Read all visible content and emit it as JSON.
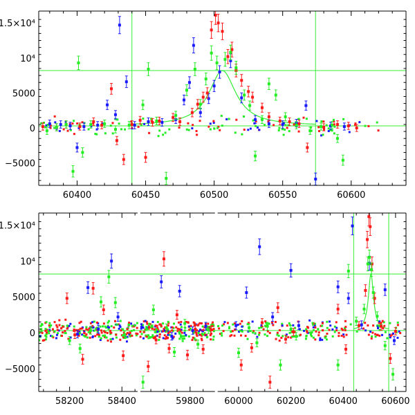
{
  "colors": {
    "red": "#ff1a1a",
    "green": "#22ee22",
    "blue": "#1a1aff",
    "guide": "#33ee33",
    "axis": "#000000"
  },
  "chart_data": [
    {
      "type": "scatter",
      "panel": "top",
      "xlim": [
        60372,
        60640
      ],
      "ylim": [
        -8200,
        16700
      ],
      "x_ticks": [
        {
          "value": 60400,
          "label": "60400"
        },
        {
          "value": 60450,
          "label": "60450"
        },
        {
          "value": 60500,
          "label": "60500"
        },
        {
          "value": 60550,
          "label": "60550"
        },
        {
          "value": 60600,
          "label": "60600"
        }
      ],
      "y_ticks": [
        {
          "value": 15000,
          "label": "1.5×10⁴"
        },
        {
          "value": 10000,
          "label": "10⁴"
        },
        {
          "value": 5000,
          "label": "5000"
        },
        {
          "value": 0,
          "label": "0"
        },
        {
          "value": -5000,
          "label": "−5000"
        }
      ],
      "hlines": [
        8200,
        300
      ],
      "vlines": [
        60440,
        60574
      ],
      "model_curve": {
        "center": 60506,
        "peak": 8200,
        "baseline": 300,
        "x_range": [
          60440,
          60574
        ]
      },
      "series": [
        {
          "color_key": "blue",
          "points": [
            [
              60380,
              600
            ],
            [
              60388,
              500
            ],
            [
              60395,
              300
            ],
            [
              60400,
              -2800
            ],
            [
              60405,
              200
            ],
            [
              60415,
              400
            ],
            [
              60422,
              3300
            ],
            [
              60428,
              1900
            ],
            [
              60431,
              14700
            ],
            [
              60436,
              6600
            ],
            [
              60442,
              400
            ],
            [
              60452,
              900
            ],
            [
              60462,
              800
            ],
            [
              60472,
              1200
            ],
            [
              60478,
              4000
            ],
            [
              60482,
              6500
            ],
            [
              60485,
              11800
            ],
            [
              60490,
              2200
            ],
            [
              60496,
              4200
            ],
            [
              60500,
              6000
            ],
            [
              60504,
              8000
            ],
            [
              60512,
              9600
            ],
            [
              60520,
              4300
            ],
            [
              60530,
              1200
            ],
            [
              60540,
              600
            ],
            [
              60550,
              500
            ],
            [
              60560,
              700
            ],
            [
              60567,
              3200
            ],
            [
              60574,
              -7300
            ],
            [
              60585,
              300
            ],
            [
              60595,
              200
            ]
          ]
        },
        {
          "color_key": "red",
          "points": [
            [
              60375,
              200
            ],
            [
              60385,
              100
            ],
            [
              60392,
              500
            ],
            [
              60402,
              200
            ],
            [
              60412,
              900
            ],
            [
              60418,
              400
            ],
            [
              60425,
              5600
            ],
            [
              60429,
              -1800
            ],
            [
              60434,
              -4500
            ],
            [
              60440,
              500
            ],
            [
              60446,
              1100
            ],
            [
              60450,
              -4200
            ],
            [
              60455,
              800
            ],
            [
              60460,
              1000
            ],
            [
              60470,
              1500
            ],
            [
              60475,
              900
            ],
            [
              60484,
              2200
            ],
            [
              60488,
              3400
            ],
            [
              60492,
              4400
            ],
            [
              60495,
              5000
            ],
            [
              60498,
              14000
            ],
            [
              60501,
              16100
            ],
            [
              60503,
              15000
            ],
            [
              60506,
              13800
            ],
            [
              60510,
              10200
            ],
            [
              60513,
              11200
            ],
            [
              60516,
              8200
            ],
            [
              60520,
              6800
            ],
            [
              60525,
              5200
            ],
            [
              60528,
              4400
            ],
            [
              60535,
              2900
            ],
            [
              60540,
              1600
            ],
            [
              60548,
              1000
            ],
            [
              60555,
              900
            ],
            [
              60562,
              600
            ],
            [
              60568,
              -2800
            ],
            [
              60580,
              100
            ],
            [
              60590,
              500
            ],
            [
              60598,
              300
            ],
            [
              60604,
              0
            ]
          ]
        },
        {
          "color_key": "green",
          "points": [
            [
              60378,
              -400
            ],
            [
              60385,
              100
            ],
            [
              60392,
              500
            ],
            [
              60397,
              -6200
            ],
            [
              60401,
              9300
            ],
            [
              60404,
              -3500
            ],
            [
              60410,
              500
            ],
            [
              60420,
              600
            ],
            [
              60428,
              -200
            ],
            [
              60438,
              400
            ],
            [
              60448,
              3300
            ],
            [
              60452,
              8400
            ],
            [
              60458,
              1000
            ],
            [
              60465,
              -7200
            ],
            [
              60472,
              1800
            ],
            [
              60480,
              5400
            ],
            [
              60486,
              8400
            ],
            [
              60490,
              3400
            ],
            [
              60494,
              7000
            ],
            [
              60498,
              10700
            ],
            [
              60502,
              9300
            ],
            [
              60508,
              9800
            ],
            [
              60512,
              10800
            ],
            [
              60516,
              8600
            ],
            [
              60522,
              4700
            ],
            [
              60526,
              3200
            ],
            [
              60530,
              -4000
            ],
            [
              60535,
              1200
            ],
            [
              60540,
              6300
            ],
            [
              60545,
              4700
            ],
            [
              60552,
              1600
            ],
            [
              60560,
              400
            ],
            [
              60570,
              -400
            ],
            [
              60578,
              200
            ],
            [
              60586,
              400
            ],
            [
              60590,
              -1500
            ],
            [
              60594,
              -4600
            ]
          ]
        }
      ]
    },
    {
      "type": "scatter",
      "panel": "bottom",
      "xlim": [
        58082,
        60640
      ],
      "ylim": [
        -8200,
        16700
      ],
      "axis_breaks": [
        {
          "x": 58460,
          "collapsed_to": 59610
        },
        {
          "x": 59895,
          "collapsed_to": 59920
        }
      ],
      "x_ticks": [
        {
          "value": 58200,
          "label": "58200"
        },
        {
          "value": 58400,
          "label": "58400"
        },
        {
          "value": 59800,
          "label": "59800"
        },
        {
          "value": 60000,
          "label": "60000"
        },
        {
          "value": 60200,
          "label": "60200"
        },
        {
          "value": 60400,
          "label": "60400"
        },
        {
          "value": 60600,
          "label": "60600"
        }
      ],
      "y_ticks": [
        {
          "value": 15000,
          "label": "1.5×10⁴"
        },
        {
          "value": 10000,
          "label": "10⁴"
        },
        {
          "value": 5000,
          "label": "5000"
        },
        {
          "value": 0,
          "label": "0"
        },
        {
          "value": -5000,
          "label": "−5000"
        }
      ],
      "hlines": [
        8200,
        300
      ],
      "vlines": [
        60440,
        60574
      ],
      "model_curve": {
        "center": 60506,
        "peak": 8200,
        "baseline": 300,
        "x_range": [
          60440,
          60574
        ]
      },
      "series": [
        {
          "color_key": "blue",
          "points": [
            [
              58230,
              -200
            ],
            [
              58270,
              6300
            ],
            [
              58310,
              500
            ],
            [
              58360,
              10000
            ],
            [
              58385,
              2200
            ],
            [
              59690,
              7100
            ],
            [
              59730,
              -500
            ],
            [
              59760,
              5800
            ],
            [
              59810,
              300
            ],
            [
              59860,
              900
            ],
            [
              59990,
              1000
            ],
            [
              60030,
              5600
            ],
            [
              60080,
              12000
            ],
            [
              60130,
              2200
            ],
            [
              60200,
              8700
            ],
            [
              60230,
              1000
            ],
            [
              60380,
              6400
            ],
            [
              60420,
              4800
            ],
            [
              60435,
              14900
            ],
            [
              60470,
              1100
            ],
            [
              60500,
              9700
            ],
            [
              60560,
              6000
            ],
            [
              60595,
              -1100
            ]
          ]
        },
        {
          "color_key": "red",
          "points": [
            [
              58190,
              4800
            ],
            [
              58220,
              -300
            ],
            [
              58250,
              -3700
            ],
            [
              58290,
              6200
            ],
            [
              58330,
              3200
            ],
            [
              58405,
              -3200
            ],
            [
              59640,
              -4700
            ],
            [
              59670,
              -1000
            ],
            [
              59700,
              10300
            ],
            [
              59720,
              -2200
            ],
            [
              59750,
              2500
            ],
            [
              59790,
              -3100
            ],
            [
              59820,
              500
            ],
            [
              59850,
              -2300
            ],
            [
              59880,
              400
            ],
            [
              60010,
              -4500
            ],
            [
              60050,
              -2100
            ],
            [
              60090,
              1400
            ],
            [
              60120,
              -6900
            ],
            [
              60150,
              3500
            ],
            [
              60180,
              -900
            ],
            [
              60210,
              100
            ],
            [
              60380,
              3300
            ],
            [
              60410,
              -2300
            ],
            [
              60460,
              1000
            ],
            [
              60485,
              5900
            ],
            [
              60492,
              13000
            ],
            [
              60498,
              16200
            ],
            [
              60503,
              14800
            ],
            [
              60510,
              9600
            ],
            [
              60520,
              4800
            ],
            [
              60545,
              900
            ],
            [
              60580,
              -3600
            ],
            [
              60600,
              200
            ]
          ]
        },
        {
          "color_key": "green",
          "points": [
            [
              58200,
              -1100
            ],
            [
              58240,
              -2200
            ],
            [
              58280,
              300
            ],
            [
              58320,
              4300
            ],
            [
              58350,
              7800
            ],
            [
              58375,
              4200
            ],
            [
              58410,
              -300
            ],
            [
              59620,
              -6900
            ],
            [
              59660,
              3200
            ],
            [
              59710,
              700
            ],
            [
              59740,
              -2700
            ],
            [
              59780,
              1300
            ],
            [
              59830,
              -1600
            ],
            [
              59870,
              400
            ],
            [
              60000,
              -2800
            ],
            [
              60040,
              700
            ],
            [
              60070,
              -1400
            ],
            [
              60110,
              900
            ],
            [
              60160,
              -4500
            ],
            [
              60200,
              500
            ],
            [
              60220,
              -500
            ],
            [
              60380,
              -4500
            ],
            [
              60420,
              8600
            ],
            [
              60450,
              1600
            ],
            [
              60480,
              3300
            ],
            [
              60494,
              9600
            ],
            [
              60500,
              10500
            ],
            [
              60508,
              8800
            ],
            [
              60515,
              5600
            ],
            [
              60530,
              2300
            ],
            [
              60560,
              -1800
            ],
            [
              60590,
              -5800
            ]
          ]
        }
      ]
    }
  ]
}
